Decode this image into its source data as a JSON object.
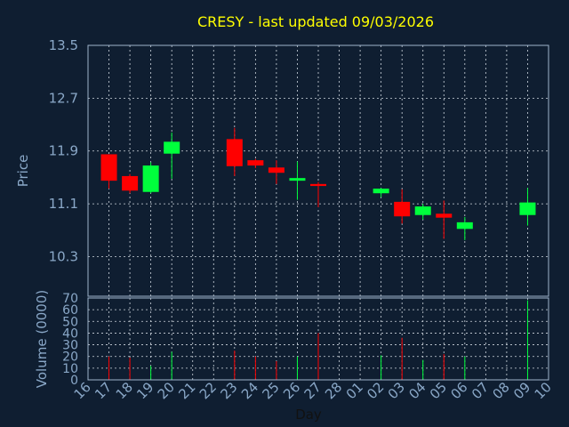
{
  "colors": {
    "background": "#0f1e31",
    "frame": "#9fb4cc",
    "grid": "#d0d8e0",
    "up": "#00ff3c",
    "down": "#ff0000",
    "title": "#ffff00",
    "label": "#8aa8c8",
    "xlabel": "#111111"
  },
  "chart_data": {
    "type": "candlestick",
    "title": "CRESY - last updated 09/03/2026",
    "ylabel": "Price",
    "volume_label": "Volume (0000)",
    "xlabel": "Day",
    "price_ylim": [
      9.7,
      13.5
    ],
    "price_ticks": [
      "13.5",
      "12.7",
      "11.9",
      "11.1",
      "10.3"
    ],
    "volume_ylim": [
      0,
      70
    ],
    "volume_ticks": [
      "70",
      "60",
      "50",
      "40",
      "30",
      "20",
      "10",
      "0"
    ],
    "x_labels": [
      "16",
      "17",
      "18",
      "19",
      "20",
      "21",
      "22",
      "23",
      "24",
      "25",
      "26",
      "27",
      "28",
      "01",
      "02",
      "03",
      "04",
      "05",
      "06",
      "07",
      "08",
      "09",
      "10"
    ],
    "candles": [
      {
        "day": "17",
        "open": 11.85,
        "close": 11.45,
        "high": 11.85,
        "low": 11.33,
        "volume": 20
      },
      {
        "day": "18",
        "open": 11.52,
        "close": 11.3,
        "high": 11.55,
        "low": 11.26,
        "volume": 19
      },
      {
        "day": "19",
        "open": 11.28,
        "close": 11.68,
        "high": 11.73,
        "low": 11.26,
        "volume": 12
      },
      {
        "day": "20",
        "open": 11.86,
        "close": 12.04,
        "high": 12.18,
        "low": 11.48,
        "volume": 24
      },
      {
        "day": "23",
        "open": 12.08,
        "close": 11.67,
        "high": 12.25,
        "low": 11.52,
        "volume": 25
      },
      {
        "day": "24",
        "open": 11.76,
        "close": 11.68,
        "high": 11.78,
        "low": 11.64,
        "volume": 20
      },
      {
        "day": "25",
        "open": 11.65,
        "close": 11.57,
        "high": 11.76,
        "low": 11.4,
        "volume": 16
      },
      {
        "day": "26",
        "open": 11.45,
        "close": 11.49,
        "high": 11.74,
        "low": 11.16,
        "volume": 20
      },
      {
        "day": "27",
        "open": 11.4,
        "close": 11.37,
        "high": 11.43,
        "low": 11.05,
        "volume": 40
      },
      {
        "day": "02",
        "open": 11.26,
        "close": 11.33,
        "high": 11.34,
        "low": 11.2,
        "volume": 21
      },
      {
        "day": "03",
        "open": 11.13,
        "close": 10.91,
        "high": 11.32,
        "low": 10.8,
        "volume": 36
      },
      {
        "day": "04",
        "open": 10.93,
        "close": 11.06,
        "high": 11.1,
        "low": 10.86,
        "volume": 17
      },
      {
        "day": "05",
        "open": 10.95,
        "close": 10.89,
        "high": 11.15,
        "low": 10.57,
        "volume": 22
      },
      {
        "day": "06",
        "open": 10.72,
        "close": 10.82,
        "high": 10.9,
        "low": 10.55,
        "volume": 20
      },
      {
        "day": "09",
        "open": 10.93,
        "close": 11.12,
        "high": 11.34,
        "low": 10.77,
        "volume": 68
      }
    ]
  }
}
